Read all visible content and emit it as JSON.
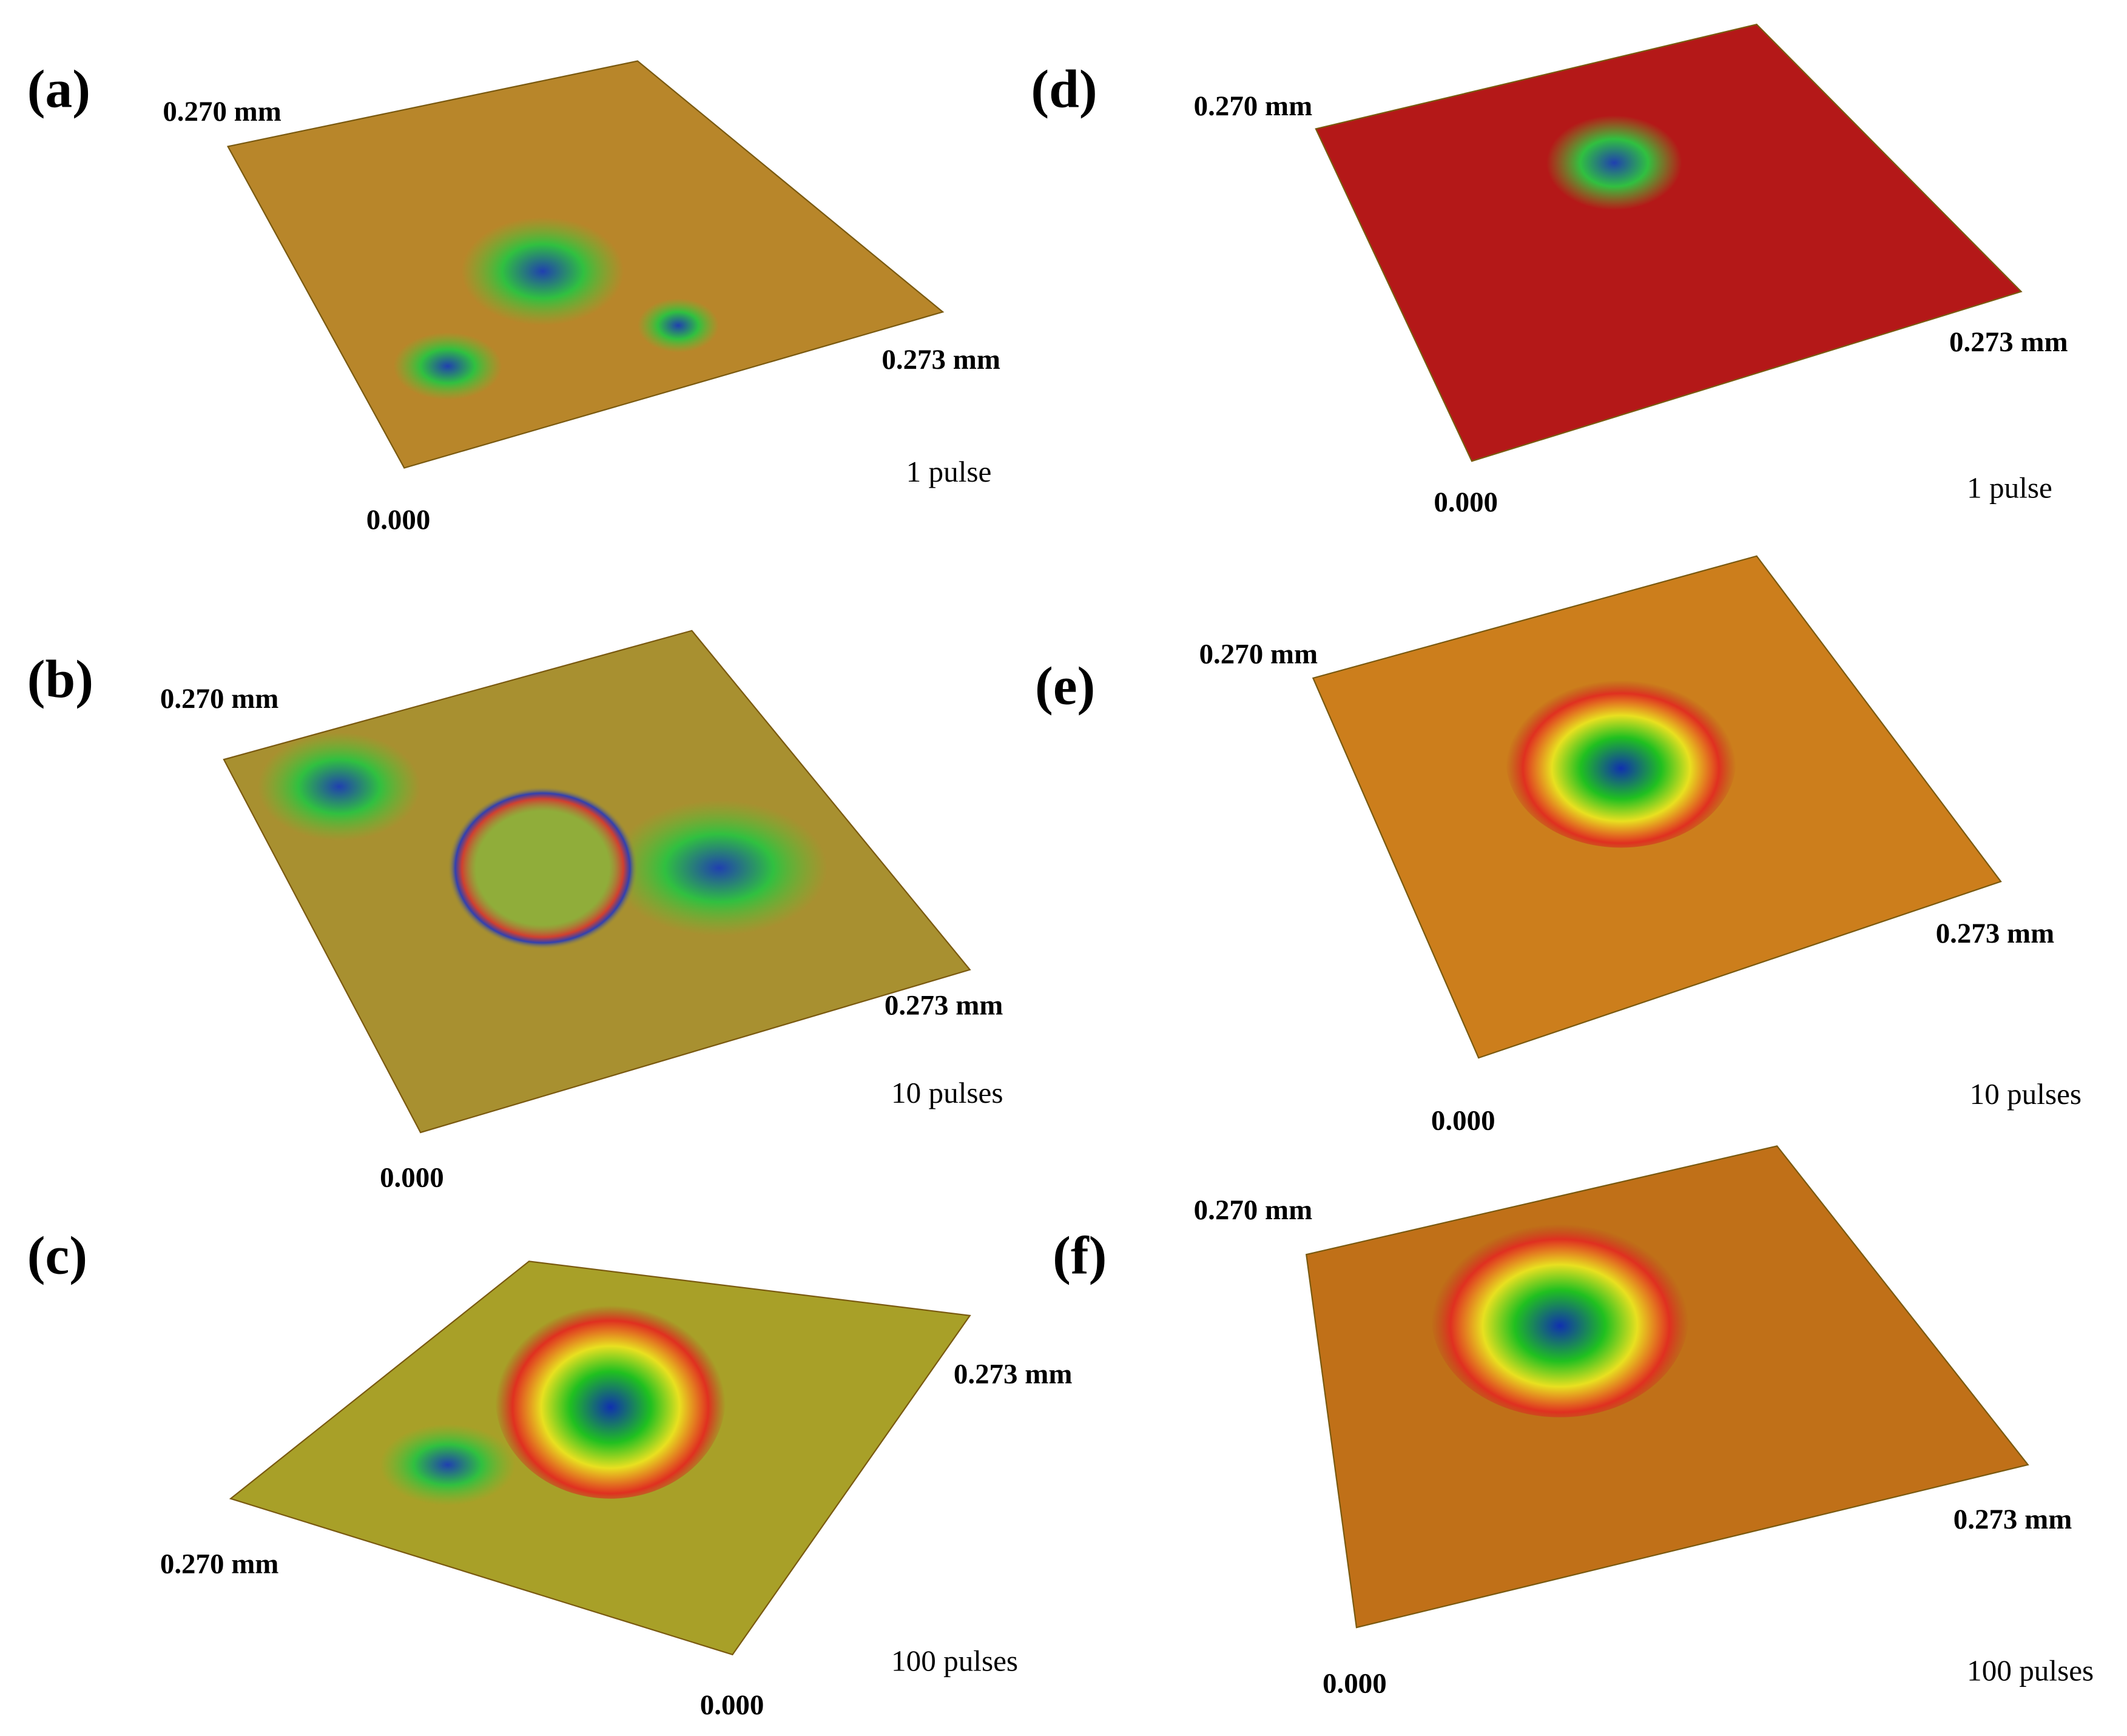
{
  "panels": [
    {
      "label": "(a)",
      "y_axis_label": "0.270 mm",
      "x_axis_label": "0.273 mm",
      "origin_label": "0.000",
      "pulses": "1 pulse"
    },
    {
      "label": "(b)",
      "y_axis_label": "0.270 mm",
      "x_axis_label": "0.273 mm",
      "origin_label": "0.000",
      "pulses": "10 pulses"
    },
    {
      "label": "(c)",
      "y_axis_label": "0.270 mm",
      "x_axis_label": "0.273 mm",
      "origin_label": "0.000",
      "pulses": "100 pulses"
    },
    {
      "label": "(d)",
      "y_axis_label": "0.270 mm",
      "x_axis_label": "0.273 mm",
      "origin_label": "0.000",
      "pulses": "1 pulse"
    },
    {
      "label": "(e)",
      "y_axis_label": "0.270 mm",
      "x_axis_label": "0.273 mm",
      "origin_label": "0.000",
      "pulses": "10 pulses"
    },
    {
      "label": "(f)",
      "y_axis_label": "0.270 mm",
      "x_axis_label": "0.273 mm",
      "origin_label": "0.000",
      "pulses": "100 pulses"
    }
  ]
}
